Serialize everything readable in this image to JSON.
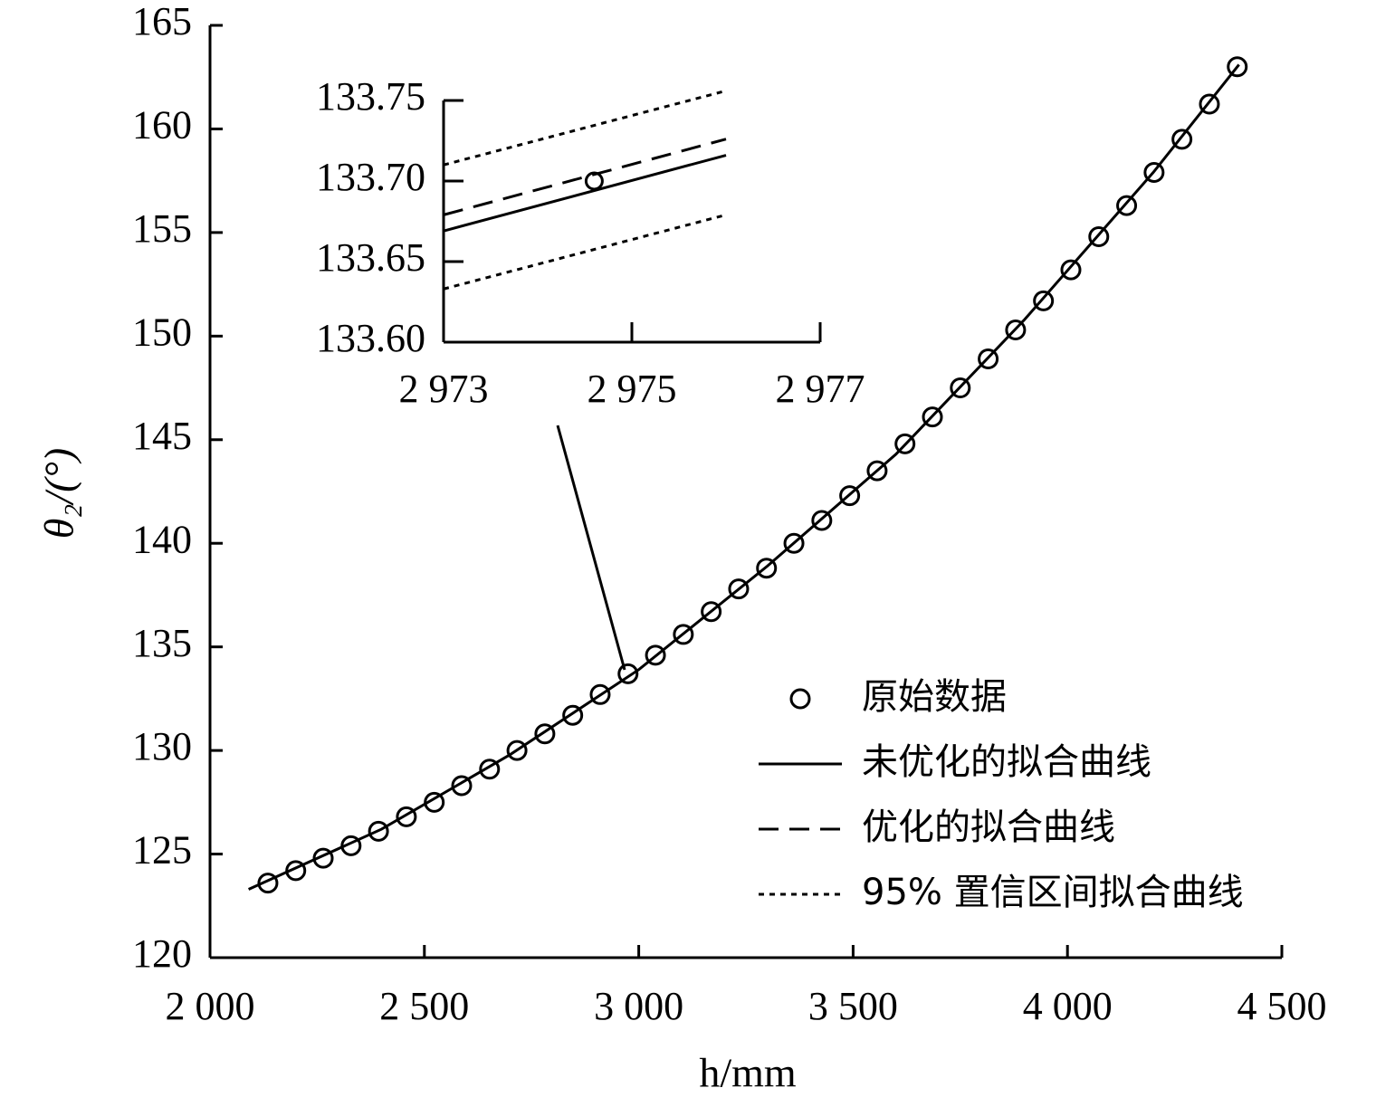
{
  "chart_data": [
    {
      "type": "scatter-line",
      "x_label": "h/mm",
      "y_label": "θ₂/(°)",
      "xlim": [
        2000,
        4500
      ],
      "ylim": [
        120,
        165
      ],
      "xticks": [
        {
          "value": 2000,
          "label": "2 000"
        },
        {
          "value": 2500,
          "label": "2 500"
        },
        {
          "value": 3000,
          "label": "3 000"
        },
        {
          "value": 3500,
          "label": "3 500"
        },
        {
          "value": 4000,
          "label": "4 000"
        },
        {
          "value": 4500,
          "label": "4 500"
        }
      ],
      "yticks": [
        120,
        125,
        130,
        135,
        140,
        145,
        150,
        155,
        160,
        165
      ],
      "series": [
        {
          "marker": "circle",
          "color": "#000000",
          "x": [
            2135,
            2200,
            2264,
            2329,
            2393,
            2458,
            2523,
            2587,
            2652,
            2716,
            2781,
            2846,
            2910,
            2975,
            3039,
            3104,
            3169,
            3233,
            3298,
            3362,
            3427,
            3492,
            3556,
            3621,
            3685,
            3750,
            3815,
            3879,
            3944,
            4008,
            4073,
            4138,
            4202,
            4267,
            4331,
            4396
          ],
          "values": [
            123.6,
            124.2,
            124.8,
            125.4,
            126.1,
            126.8,
            127.5,
            128.3,
            129.1,
            130.0,
            130.8,
            131.7,
            132.7,
            133.7,
            134.6,
            135.6,
            136.7,
            137.8,
            138.8,
            140.0,
            141.1,
            142.3,
            143.5,
            144.8,
            146.1,
            147.5,
            148.9,
            150.3,
            151.7,
            153.2,
            154.8,
            156.3,
            157.9,
            159.5,
            161.2,
            163.0
          ]
        },
        {
          "marker": "line",
          "dash": "solid",
          "color": "#000000",
          "x": [
            2090,
            2400,
            2700,
            3000,
            3300,
            3600,
            3900,
            4200,
            4400
          ],
          "values": [
            123.3,
            126.2,
            129.8,
            133.9,
            138.9,
            144.3,
            150.8,
            157.9,
            163.1
          ]
        }
      ]
    },
    {
      "type": "scatter-line",
      "xlim": [
        2973,
        2977
      ],
      "ylim": [
        133.6,
        133.75
      ],
      "xticks": [
        {
          "value": 2973,
          "label": "2 973"
        },
        {
          "value": 2975,
          "label": "2 975"
        },
        {
          "value": 2977,
          "label": "2 977"
        }
      ],
      "yticks": [
        {
          "value": 133.6,
          "label": "133.60"
        },
        {
          "value": 133.65,
          "label": "133.65"
        },
        {
          "value": 133.7,
          "label": "133.70"
        },
        {
          "value": 133.75,
          "label": "133.75"
        }
      ],
      "legend": "lower right",
      "series": [
        {
          "name": "原始数据",
          "marker": "circle",
          "color": "#000000",
          "x": [
            2974.6
          ],
          "values": [
            133.7
          ]
        },
        {
          "name": "未优化的拟合曲线",
          "marker": "line",
          "dash": "solid",
          "color": "#000000",
          "x": [
            2973,
            2976
          ],
          "values": [
            133.669,
            133.716
          ]
        },
        {
          "name": "优化的拟合曲线",
          "marker": "line",
          "dash": "dashed",
          "color": "#000000",
          "x": [
            2973,
            2976
          ],
          "values": [
            133.679,
            133.726
          ]
        },
        {
          "name": "95% 置信区间拟合曲线",
          "marker": "line",
          "dash": "dotted",
          "color": "#000000",
          "x": [
            2973,
            2976
          ],
          "values": [
            133.71,
            133.756
          ],
          "lower": [
            133.633,
            133.679
          ]
        }
      ]
    }
  ]
}
